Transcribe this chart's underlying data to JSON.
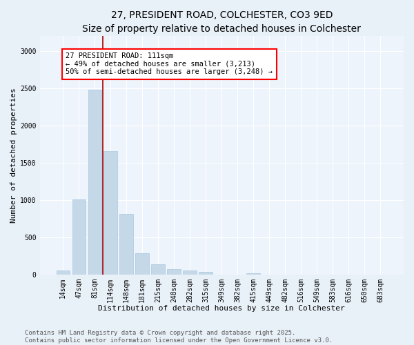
{
  "title": "27, PRESIDENT ROAD, COLCHESTER, CO3 9ED",
  "subtitle": "Size of property relative to detached houses in Colchester",
  "xlabel": "Distribution of detached houses by size in Colchester",
  "ylabel": "Number of detached properties",
  "categories": [
    "14sqm",
    "47sqm",
    "81sqm",
    "114sqm",
    "148sqm",
    "181sqm",
    "215sqm",
    "248sqm",
    "282sqm",
    "315sqm",
    "349sqm",
    "382sqm",
    "415sqm",
    "449sqm",
    "482sqm",
    "516sqm",
    "549sqm",
    "583sqm",
    "616sqm",
    "650sqm",
    "683sqm"
  ],
  "values": [
    55,
    1010,
    2480,
    1660,
    820,
    290,
    140,
    75,
    60,
    40,
    0,
    0,
    20,
    0,
    0,
    0,
    0,
    0,
    0,
    0,
    0
  ],
  "bar_color": "#c5d8e8",
  "bar_edgecolor": "#a8c8e0",
  "vline_color": "#aa0000",
  "vline_x": 2.5,
  "annotation_text": "27 PRESIDENT ROAD: 111sqm\n← 49% of detached houses are smaller (3,213)\n50% of semi-detached houses are larger (3,248) →",
  "ylim": [
    0,
    3200
  ],
  "yticks": [
    0,
    500,
    1000,
    1500,
    2000,
    2500,
    3000
  ],
  "footer_line1": "Contains HM Land Registry data © Crown copyright and database right 2025.",
  "footer_line2": "Contains public sector information licensed under the Open Government Licence v3.0.",
  "bg_color": "#e8f0f8",
  "plot_bg_color": "#eef4fc",
  "title_fontsize": 10,
  "subtitle_fontsize": 9,
  "annotation_fontsize": 7.5,
  "footer_fontsize": 6.5,
  "axis_tick_fontsize": 7,
  "axis_label_fontsize": 8
}
